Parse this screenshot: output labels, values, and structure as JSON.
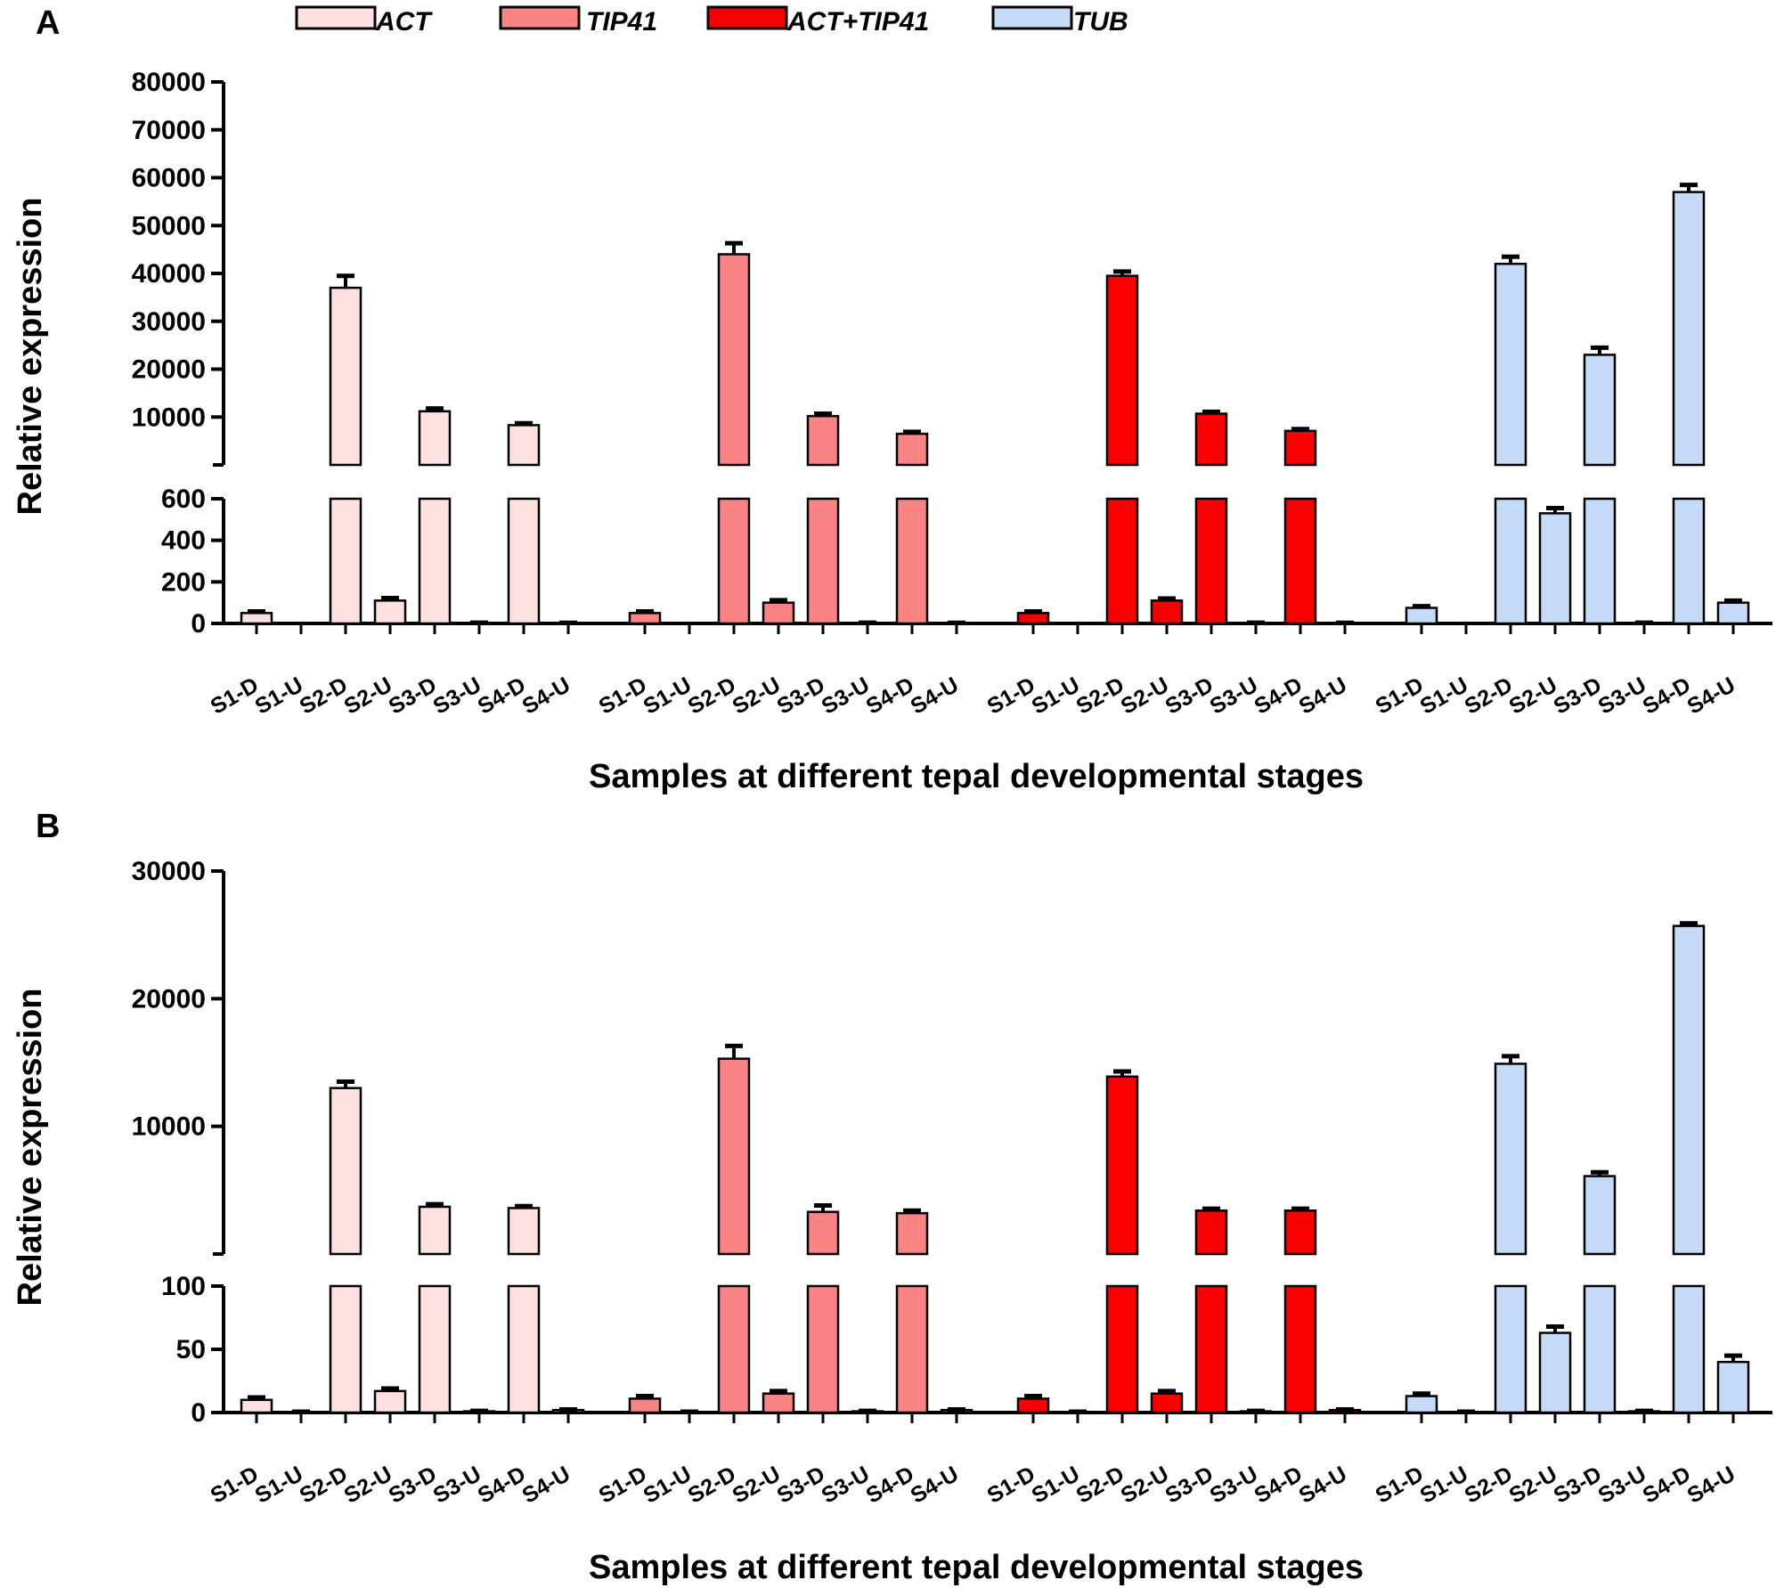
{
  "chart_data": [
    {
      "type": "bar",
      "panel": "A",
      "xlabel": "Samples at different tepal developmental stages",
      "ylabel": "Relative expression",
      "broken_axis": true,
      "lower_ylim": [
        0,
        600
      ],
      "upper_ylim": [
        0,
        80000
      ],
      "lower_ticks": [
        "0",
        "200",
        "400",
        "600"
      ],
      "upper_ticks": [
        "10000",
        "20000",
        "30000",
        "40000",
        "50000",
        "60000",
        "70000",
        "80000"
      ],
      "categories": [
        "S1-D",
        "S1-U",
        "S2-D",
        "S2-U",
        "S3-D",
        "S3-U",
        "S4-D",
        "S4-U"
      ],
      "series": [
        {
          "name": "ACT",
          "color": "#fde0e0",
          "values": [
            50,
            0,
            37000,
            110,
            11200,
            3,
            8300,
            2
          ],
          "errors": [
            8,
            0,
            2500,
            12,
            600,
            1,
            400,
            1
          ]
        },
        {
          "name": "TIP41",
          "color": "#fa8484",
          "values": [
            50,
            0,
            44000,
            100,
            10200,
            3,
            6500,
            2
          ],
          "errors": [
            8,
            0,
            2300,
            12,
            500,
            1,
            400,
            1
          ]
        },
        {
          "name": "ACT+TIP41",
          "color": "#fb0000",
          "values": [
            50,
            0,
            39500,
            110,
            10700,
            3,
            7100,
            2
          ],
          "errors": [
            8,
            0,
            900,
            10,
            400,
            1,
            400,
            1
          ]
        },
        {
          "name": "TUB",
          "color": "#c6dbf7",
          "values": [
            75,
            0,
            42000,
            530,
            23000,
            3,
            57000,
            100
          ],
          "errors": [
            8,
            0,
            1500,
            25,
            1500,
            1,
            1500,
            10
          ]
        }
      ]
    },
    {
      "type": "bar",
      "panel": "B",
      "xlabel": "Samples at different tepal developmental stages",
      "ylabel": "Relative expression",
      "broken_axis": true,
      "lower_ylim": [
        0,
        100
      ],
      "upper_ylim": [
        0,
        30000
      ],
      "lower_ticks": [
        "0",
        "50",
        "100"
      ],
      "upper_ticks": [
        "10000",
        "20000",
        "30000"
      ],
      "categories": [
        "S1-D",
        "S1-U",
        "S2-D",
        "S2-U",
        "S3-D",
        "S3-U",
        "S4-D",
        "S4-U"
      ],
      "series": [
        {
          "name": "ACT",
          "color": "#fde0e0",
          "values": [
            10,
            0.5,
            13000,
            17,
            3700,
            1,
            3600,
            2
          ],
          "errors": [
            2,
            0.2,
            500,
            2,
            200,
            0.3,
            150,
            0.5
          ]
        },
        {
          "name": "TIP41",
          "color": "#fa8484",
          "values": [
            11,
            0.5,
            15300,
            15,
            3300,
            1,
            3200,
            2
          ],
          "errors": [
            2,
            0.2,
            1000,
            2,
            500,
            0.3,
            200,
            0.5
          ]
        },
        {
          "name": "ACT+TIP41",
          "color": "#fb0000",
          "values": [
            11,
            0.5,
            13900,
            15,
            3400,
            1,
            3400,
            2
          ],
          "errors": [
            2,
            0.2,
            400,
            2,
            150,
            0.3,
            150,
            0.5
          ]
        },
        {
          "name": "TUB",
          "color": "#c6dbf7",
          "values": [
            13,
            0.5,
            14900,
            63,
            6100,
            1,
            25700,
            40
          ],
          "errors": [
            2,
            0.2,
            600,
            5,
            300,
            0.3,
            200,
            5
          ]
        }
      ]
    }
  ]
}
